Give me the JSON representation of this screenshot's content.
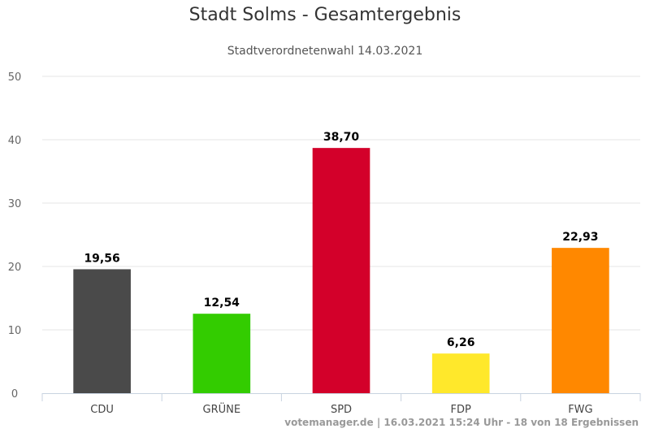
{
  "chart_data": {
    "type": "bar",
    "title": "Stadt Solms - Gesamtergebnis",
    "subtitle": "Stadtverordnetenwahl 14.03.2021",
    "categories": [
      "CDU",
      "GRÜNE",
      "SPD",
      "FDP",
      "FWG"
    ],
    "values": [
      19.56,
      12.54,
      38.7,
      6.26,
      22.93
    ],
    "data_labels": [
      "19,56",
      "12,54",
      "38,70",
      "6,26",
      "22,93"
    ],
    "colors": [
      "#4a4a4a",
      "#33cc00",
      "#d3002a",
      "#ffe82b",
      "#ff8800"
    ],
    "ylim": [
      0,
      50
    ],
    "yticks": [
      0,
      10,
      20,
      30,
      40,
      50
    ],
    "grid": true,
    "legend": "none",
    "xlabel": "",
    "ylabel": ""
  },
  "credits": "votemanager.de | 16.03.2021 15:24 Uhr - 18 von 18 Ergebnissen"
}
